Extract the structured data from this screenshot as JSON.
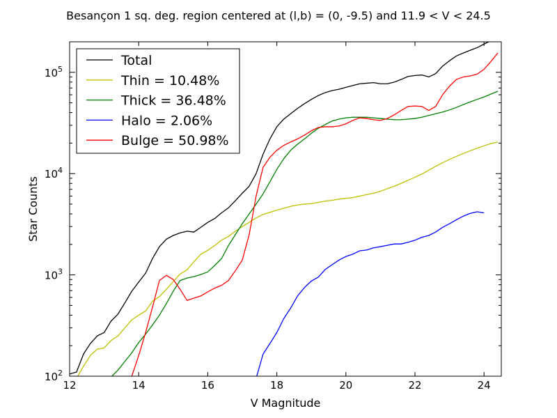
{
  "chart_data": {
    "type": "line",
    "title": "Besançon 1 sq. deg. region centered at (l,b) = (0, -9.5) and 11.9 < V < 24.5",
    "xlabel": "V Magnitude",
    "ylabel": "Star Counts",
    "xlim": [
      12,
      24.5
    ],
    "ylim": [
      100,
      200000
    ],
    "yscale": "log",
    "grid": false,
    "legend_position": "top-left",
    "x_ticks": [
      {
        "value": 12,
        "label": "12"
      },
      {
        "value": 14,
        "label": "14"
      },
      {
        "value": 16,
        "label": "16"
      },
      {
        "value": 18,
        "label": "18"
      },
      {
        "value": 20,
        "label": "20"
      },
      {
        "value": 22,
        "label": "22"
      },
      {
        "value": 24,
        "label": "24"
      }
    ],
    "y_ticks": [
      {
        "value": 100,
        "base": "10",
        "exp": "2"
      },
      {
        "value": 1000,
        "base": "10",
        "exp": "3"
      },
      {
        "value": 10000,
        "base": "10",
        "exp": "4"
      },
      {
        "value": 100000,
        "base": "10",
        "exp": "5"
      }
    ],
    "series": [
      {
        "name": "Total",
        "color": "#000000",
        "points": [
          [
            12.0,
            105
          ],
          [
            12.2,
            110
          ],
          [
            12.4,
            165
          ],
          [
            12.6,
            210
          ],
          [
            12.8,
            250
          ],
          [
            13.0,
            270
          ],
          [
            13.2,
            350
          ],
          [
            13.4,
            410
          ],
          [
            13.6,
            530
          ],
          [
            13.8,
            690
          ],
          [
            14.0,
            850
          ],
          [
            14.2,
            1040
          ],
          [
            14.4,
            1450
          ],
          [
            14.6,
            1900
          ],
          [
            14.8,
            2250
          ],
          [
            15.0,
            2450
          ],
          [
            15.2,
            2600
          ],
          [
            15.4,
            2700
          ],
          [
            15.6,
            2650
          ],
          [
            15.8,
            2950
          ],
          [
            16.0,
            3300
          ],
          [
            16.2,
            3600
          ],
          [
            16.4,
            4100
          ],
          [
            16.6,
            4600
          ],
          [
            16.8,
            5400
          ],
          [
            17.0,
            6400
          ],
          [
            17.2,
            7500
          ],
          [
            17.4,
            10000
          ],
          [
            17.6,
            15500
          ],
          [
            17.8,
            22000
          ],
          [
            18.0,
            29000
          ],
          [
            18.2,
            34500
          ],
          [
            18.4,
            39000
          ],
          [
            18.6,
            44000
          ],
          [
            18.8,
            49000
          ],
          [
            19.0,
            54000
          ],
          [
            19.2,
            59000
          ],
          [
            19.4,
            63000
          ],
          [
            19.6,
            66000
          ],
          [
            19.8,
            68000
          ],
          [
            20.0,
            71000
          ],
          [
            20.2,
            74000
          ],
          [
            20.4,
            77000
          ],
          [
            20.6,
            78000
          ],
          [
            20.8,
            79000
          ],
          [
            21.0,
            77000
          ],
          [
            21.2,
            77000
          ],
          [
            21.4,
            80000
          ],
          [
            21.6,
            85000
          ],
          [
            21.8,
            91000
          ],
          [
            22.0,
            93000
          ],
          [
            22.2,
            94000
          ],
          [
            22.4,
            90000
          ],
          [
            22.6,
            97000
          ],
          [
            22.8,
            115000
          ],
          [
            23.0,
            130000
          ],
          [
            23.2,
            145000
          ],
          [
            23.4,
            155000
          ],
          [
            23.6,
            165000
          ],
          [
            23.8,
            175000
          ],
          [
            24.0,
            190000
          ],
          [
            24.2,
            205000
          ]
        ]
      },
      {
        "name": "Thin = 10.48%",
        "color": "#bfbf00",
        "points": [
          [
            12.2,
            95
          ],
          [
            12.4,
            125
          ],
          [
            12.6,
            160
          ],
          [
            12.8,
            185
          ],
          [
            13.0,
            190
          ],
          [
            13.2,
            225
          ],
          [
            13.4,
            250
          ],
          [
            13.6,
            300
          ],
          [
            13.8,
            360
          ],
          [
            14.0,
            400
          ],
          [
            14.2,
            440
          ],
          [
            14.4,
            550
          ],
          [
            14.6,
            610
          ],
          [
            14.8,
            720
          ],
          [
            15.0,
            860
          ],
          [
            15.2,
            1020
          ],
          [
            15.4,
            1120
          ],
          [
            15.6,
            1350
          ],
          [
            15.8,
            1600
          ],
          [
            16.0,
            1750
          ],
          [
            16.2,
            1950
          ],
          [
            16.4,
            2200
          ],
          [
            16.6,
            2400
          ],
          [
            16.8,
            2700
          ],
          [
            17.0,
            3000
          ],
          [
            17.2,
            3300
          ],
          [
            17.4,
            3650
          ],
          [
            17.6,
            3950
          ],
          [
            17.8,
            4150
          ],
          [
            18.0,
            4350
          ],
          [
            18.2,
            4550
          ],
          [
            18.4,
            4750
          ],
          [
            18.6,
            4900
          ],
          [
            18.8,
            5000
          ],
          [
            19.0,
            5050
          ],
          [
            19.2,
            5200
          ],
          [
            19.4,
            5350
          ],
          [
            19.6,
            5450
          ],
          [
            19.8,
            5600
          ],
          [
            20.0,
            5700
          ],
          [
            20.2,
            5800
          ],
          [
            20.4,
            6000
          ],
          [
            20.6,
            6200
          ],
          [
            20.8,
            6400
          ],
          [
            21.0,
            6700
          ],
          [
            21.2,
            7100
          ],
          [
            21.4,
            7500
          ],
          [
            21.6,
            8000
          ],
          [
            21.8,
            8600
          ],
          [
            22.0,
            9200
          ],
          [
            22.2,
            9900
          ],
          [
            22.4,
            10800
          ],
          [
            22.6,
            11800
          ],
          [
            22.8,
            12800
          ],
          [
            23.0,
            13800
          ],
          [
            23.2,
            14800
          ],
          [
            23.4,
            15800
          ],
          [
            23.6,
            16800
          ],
          [
            23.8,
            17800
          ],
          [
            24.0,
            18800
          ],
          [
            24.2,
            19800
          ],
          [
            24.4,
            20500
          ]
        ]
      },
      {
        "name": "Thick = 36.48%",
        "color": "#008000",
        "points": [
          [
            13.2,
            98
          ],
          [
            13.4,
            115
          ],
          [
            13.6,
            140
          ],
          [
            13.8,
            170
          ],
          [
            14.0,
            215
          ],
          [
            14.2,
            260
          ],
          [
            14.4,
            320
          ],
          [
            14.6,
            400
          ],
          [
            14.8,
            520
          ],
          [
            15.0,
            690
          ],
          [
            15.2,
            880
          ],
          [
            15.4,
            930
          ],
          [
            15.6,
            960
          ],
          [
            15.8,
            1010
          ],
          [
            16.0,
            1070
          ],
          [
            16.2,
            1240
          ],
          [
            16.4,
            1450
          ],
          [
            16.6,
            1950
          ],
          [
            16.8,
            2500
          ],
          [
            17.0,
            3200
          ],
          [
            17.2,
            4000
          ],
          [
            17.4,
            5000
          ],
          [
            17.6,
            6300
          ],
          [
            17.8,
            8300
          ],
          [
            18.0,
            11000
          ],
          [
            18.2,
            14000
          ],
          [
            18.4,
            17000
          ],
          [
            18.6,
            19500
          ],
          [
            18.8,
            22000
          ],
          [
            19.0,
            25000
          ],
          [
            19.2,
            28000
          ],
          [
            19.4,
            30500
          ],
          [
            19.6,
            33000
          ],
          [
            19.8,
            34500
          ],
          [
            20.0,
            35500
          ],
          [
            20.2,
            36000
          ],
          [
            20.4,
            36000
          ],
          [
            20.6,
            36000
          ],
          [
            20.8,
            35500
          ],
          [
            21.0,
            35000
          ],
          [
            21.2,
            34500
          ],
          [
            21.4,
            34000
          ],
          [
            21.6,
            34000
          ],
          [
            21.8,
            34500
          ],
          [
            22.0,
            35000
          ],
          [
            22.2,
            36000
          ],
          [
            22.4,
            37500
          ],
          [
            22.6,
            39000
          ],
          [
            22.8,
            40500
          ],
          [
            23.0,
            42500
          ],
          [
            23.2,
            45000
          ],
          [
            23.4,
            48000
          ],
          [
            23.6,
            51000
          ],
          [
            23.8,
            54000
          ],
          [
            24.0,
            57000
          ],
          [
            24.2,
            61000
          ],
          [
            24.4,
            65000
          ]
        ]
      },
      {
        "name": "Halo = 2.06%",
        "color": "#0000ff",
        "points": [
          [
            17.4,
            95
          ],
          [
            17.6,
            165
          ],
          [
            17.8,
            210
          ],
          [
            18.0,
            270
          ],
          [
            18.2,
            370
          ],
          [
            18.4,
            470
          ],
          [
            18.6,
            620
          ],
          [
            18.8,
            750
          ],
          [
            19.0,
            870
          ],
          [
            19.2,
            950
          ],
          [
            19.4,
            1130
          ],
          [
            19.6,
            1260
          ],
          [
            19.8,
            1400
          ],
          [
            20.0,
            1520
          ],
          [
            20.2,
            1600
          ],
          [
            20.4,
            1730
          ],
          [
            20.6,
            1760
          ],
          [
            20.8,
            1850
          ],
          [
            21.0,
            1900
          ],
          [
            21.2,
            1960
          ],
          [
            21.4,
            2020
          ],
          [
            21.6,
            2020
          ],
          [
            21.8,
            2100
          ],
          [
            22.0,
            2200
          ],
          [
            22.2,
            2350
          ],
          [
            22.4,
            2450
          ],
          [
            22.6,
            2650
          ],
          [
            22.8,
            2950
          ],
          [
            23.0,
            3200
          ],
          [
            23.2,
            3500
          ],
          [
            23.4,
            3800
          ],
          [
            23.6,
            4050
          ],
          [
            23.8,
            4200
          ],
          [
            24.0,
            4100
          ]
        ]
      },
      {
        "name": "Bulge = 50.98%",
        "color": "#ff0000",
        "points": [
          [
            13.8,
            100
          ],
          [
            14.0,
            160
          ],
          [
            14.2,
            270
          ],
          [
            14.4,
            480
          ],
          [
            14.6,
            880
          ],
          [
            14.8,
            990
          ],
          [
            15.0,
            900
          ],
          [
            15.2,
            720
          ],
          [
            15.4,
            560
          ],
          [
            15.6,
            590
          ],
          [
            15.8,
            620
          ],
          [
            16.0,
            680
          ],
          [
            16.2,
            740
          ],
          [
            16.4,
            790
          ],
          [
            16.6,
            880
          ],
          [
            16.8,
            1100
          ],
          [
            17.0,
            1400
          ],
          [
            17.2,
            2500
          ],
          [
            17.4,
            6000
          ],
          [
            17.6,
            11500
          ],
          [
            17.8,
            14500
          ],
          [
            18.0,
            17000
          ],
          [
            18.2,
            19000
          ],
          [
            18.4,
            20500
          ],
          [
            18.6,
            22000
          ],
          [
            18.8,
            24000
          ],
          [
            19.0,
            26500
          ],
          [
            19.2,
            28500
          ],
          [
            19.4,
            29000
          ],
          [
            19.6,
            29000
          ],
          [
            19.8,
            29500
          ],
          [
            20.0,
            31000
          ],
          [
            20.2,
            33500
          ],
          [
            20.4,
            35500
          ],
          [
            20.6,
            35000
          ],
          [
            20.8,
            34000
          ],
          [
            21.0,
            33500
          ],
          [
            21.2,
            35000
          ],
          [
            21.4,
            38000
          ],
          [
            21.6,
            42000
          ],
          [
            21.8,
            46000
          ],
          [
            22.0,
            46500
          ],
          [
            22.2,
            46000
          ],
          [
            22.4,
            42000
          ],
          [
            22.6,
            46000
          ],
          [
            22.8,
            60000
          ],
          [
            23.0,
            73000
          ],
          [
            23.2,
            85000
          ],
          [
            23.4,
            90000
          ],
          [
            23.6,
            92000
          ],
          [
            23.8,
            96000
          ],
          [
            24.0,
            107000
          ],
          [
            24.2,
            128000
          ],
          [
            24.4,
            155000
          ]
        ]
      }
    ]
  }
}
